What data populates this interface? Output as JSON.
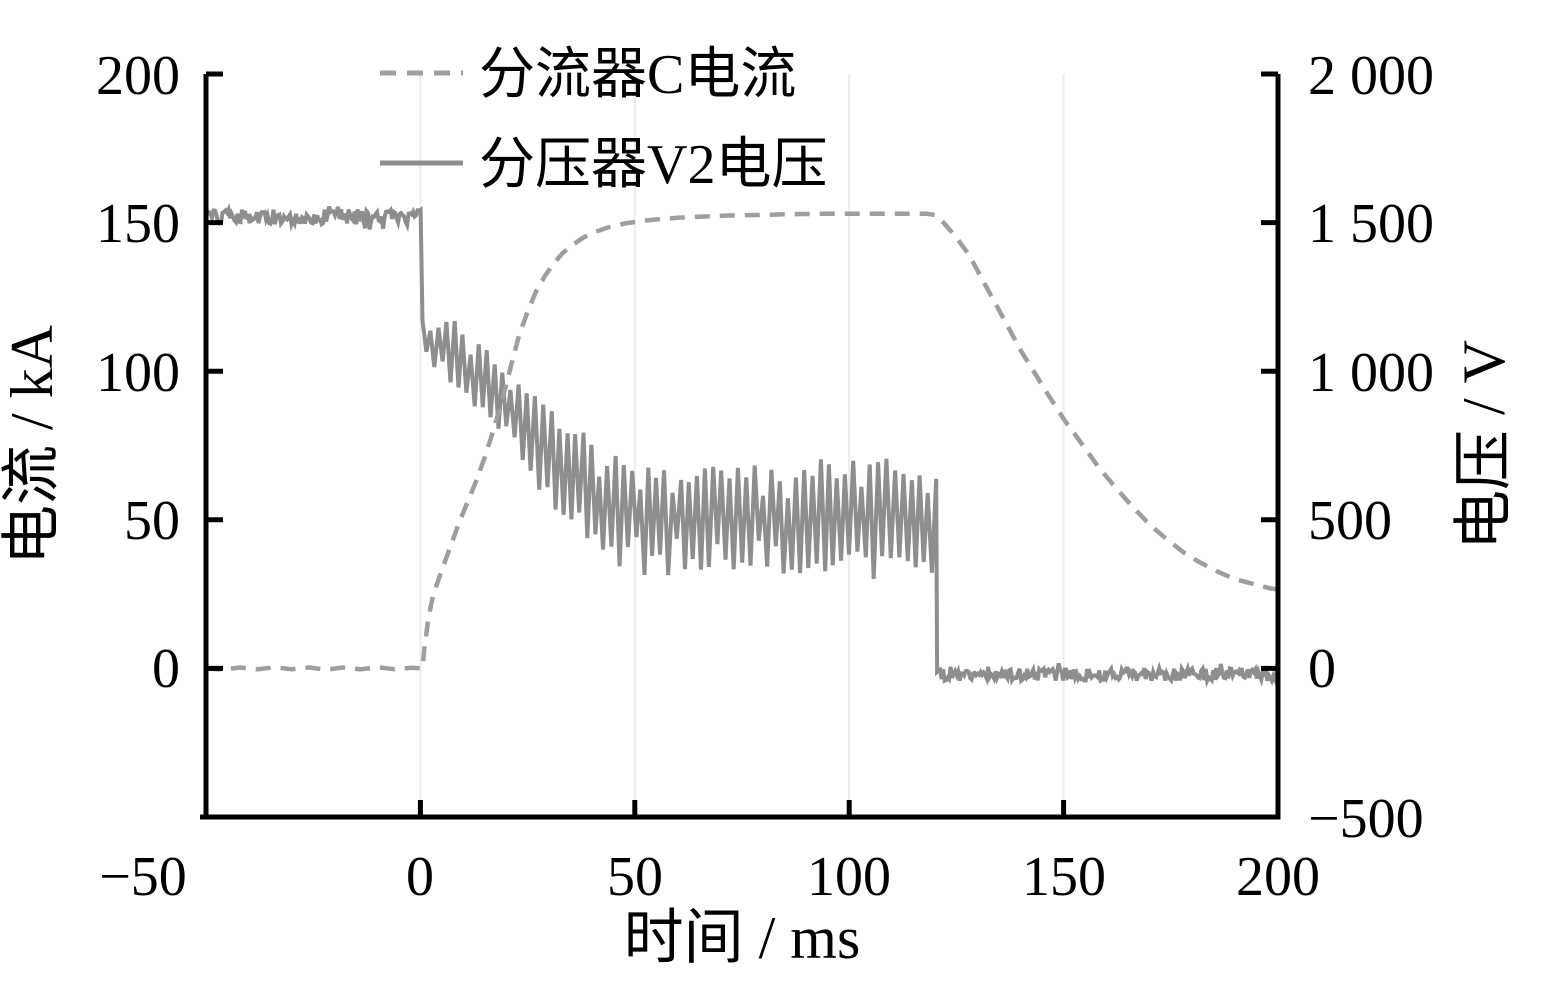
{
  "chart_data": {
    "type": "line",
    "title": "",
    "x_axis": {
      "label": "时间 / ms",
      "range": [
        -50,
        200
      ],
      "ticks": [
        -50,
        0,
        50,
        100,
        150,
        200
      ],
      "tick_labels": [
        "−50",
        "0",
        "50",
        "100",
        "150",
        "200"
      ]
    },
    "y_axis_left": {
      "label": "电流 / kA",
      "range": [
        -50,
        200
      ],
      "ticks": [
        200,
        150,
        100,
        50,
        0
      ],
      "tick_labels": [
        "200",
        "150",
        "100",
        "50",
        "0"
      ]
    },
    "y_axis_right": {
      "label": "电压 / V",
      "range": [
        -500,
        2000
      ],
      "ticks": [
        2000,
        1500,
        1000,
        500,
        0,
        -500
      ],
      "tick_labels": [
        "2 000",
        "1 500",
        "1 000",
        "500",
        "0",
        "−500"
      ]
    },
    "grid": {
      "vertical_at": [
        0,
        50,
        100,
        150
      ],
      "color": "#ededed"
    },
    "legend": {
      "position": "top-inside",
      "entries": [
        {
          "label": "分流器C电流",
          "style": "dashed",
          "color": "#9e9e9e"
        },
        {
          "label": "分压器V2电压",
          "style": "solid",
          "color": "#8e8e8e"
        }
      ]
    },
    "series": [
      {
        "name": "分流器C电流",
        "axis": "left",
        "unit": "kA",
        "style": "dashed",
        "color": "#9e9e9e",
        "points": [
          [
            -50,
            0
          ],
          [
            -46,
            -0.4
          ],
          [
            -42,
            0.3
          ],
          [
            -38,
            -0.3
          ],
          [
            -34,
            0.4
          ],
          [
            -30,
            -0.3
          ],
          [
            -26,
            0.3
          ],
          [
            -22,
            -0.4
          ],
          [
            -18,
            0.3
          ],
          [
            -14,
            -0.3
          ],
          [
            -10,
            0.4
          ],
          [
            -6,
            -0.3
          ],
          [
            -2,
            0.2
          ],
          [
            0.5,
            0
          ],
          [
            1,
            8
          ],
          [
            2,
            18
          ],
          [
            3,
            25
          ],
          [
            5,
            33
          ],
          [
            7,
            41
          ],
          [
            9,
            49
          ],
          [
            11,
            56
          ],
          [
            13,
            63
          ],
          [
            15,
            71
          ],
          [
            17,
            80
          ],
          [
            19,
            90
          ],
          [
            21,
            101
          ],
          [
            23,
            112
          ],
          [
            25,
            120
          ],
          [
            27,
            127
          ],
          [
            29,
            132
          ],
          [
            31,
            136
          ],
          [
            33,
            139.5
          ],
          [
            35,
            142
          ],
          [
            38,
            145
          ],
          [
            41,
            147
          ],
          [
            44,
            148.5
          ],
          [
            48,
            149.8
          ],
          [
            52,
            150.6
          ],
          [
            56,
            151.2
          ],
          [
            60,
            151.6
          ],
          [
            65,
            152
          ],
          [
            70,
            152.3
          ],
          [
            75,
            152.5
          ],
          [
            80,
            152.6
          ],
          [
            85,
            152.8
          ],
          [
            90,
            152.9
          ],
          [
            95,
            153
          ],
          [
            100,
            153
          ],
          [
            105,
            153
          ],
          [
            110,
            153
          ],
          [
            115,
            153
          ],
          [
            118,
            153
          ],
          [
            120,
            152.6
          ],
          [
            122,
            150
          ],
          [
            125,
            145
          ],
          [
            128,
            139
          ],
          [
            131,
            131
          ],
          [
            134,
            123
          ],
          [
            137,
            115
          ],
          [
            140,
            107
          ],
          [
            143,
            100
          ],
          [
            146,
            93
          ],
          [
            150,
            84
          ],
          [
            154,
            76
          ],
          [
            158,
            68
          ],
          [
            162,
            61
          ],
          [
            166,
            54.5
          ],
          [
            170,
            48.5
          ],
          [
            174,
            43.5
          ],
          [
            178,
            39
          ],
          [
            182,
            35.5
          ],
          [
            186,
            32.5
          ],
          [
            190,
            30
          ],
          [
            194,
            28.5
          ],
          [
            198,
            27
          ],
          [
            200,
            26.5
          ]
        ]
      },
      {
        "name": "分压器V2电压",
        "axis": "right",
        "unit": "V",
        "style": "solid",
        "color": "#8e8e8e",
        "segments": [
          {
            "kind": "noisy-flat",
            "t_start": -50,
            "t_end": 0.4,
            "level": 1520,
            "noise": 26
          },
          {
            "kind": "oscillation",
            "t_start": 0.5,
            "t_end": 120.3,
            "half_period": 0.95,
            "envelope": [
              [
                0.5,
                1110,
                70
              ],
              [
                2,
                1100,
                85
              ],
              [
                5,
                1075,
                95
              ],
              [
                8,
                1048,
                105
              ],
              [
                12,
                1005,
                115
              ],
              [
                16,
                950,
                125
              ],
              [
                20,
                888,
                135
              ],
              [
                24,
                818,
                145
              ],
              [
                28,
                748,
                155
              ],
              [
                32,
                685,
                160
              ],
              [
                36,
                625,
                165
              ],
              [
                40,
                585,
                168
              ],
              [
                44,
                556,
                170
              ],
              [
                48,
                536,
                170
              ],
              [
                52,
                521,
                170
              ],
              [
                56,
                511,
                172
              ],
              [
                60,
                505,
                175
              ],
              [
                66,
                500,
                178
              ],
              [
                72,
                500,
                180
              ],
              [
                78,
                504,
                178
              ],
              [
                84,
                500,
                182
              ],
              [
                90,
                500,
                185
              ],
              [
                96,
                510,
                180
              ],
              [
                102,
                524,
                182
              ],
              [
                108,
                525,
                185
              ],
              [
                113,
                510,
                182
              ],
              [
                117,
                500,
                178
              ],
              [
                120.3,
                488,
                172
              ]
            ]
          },
          {
            "kind": "noisy-flat",
            "t_start": 120.5,
            "t_end": 200,
            "level": -20,
            "noise": 22
          }
        ]
      }
    ]
  }
}
